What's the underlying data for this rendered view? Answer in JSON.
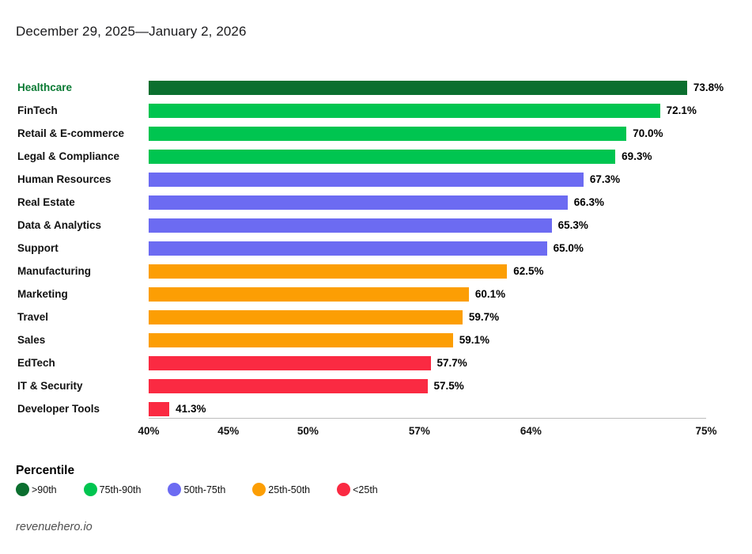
{
  "title": "December 29, 2025—January 2, 2026",
  "footer": "revenuehero.io",
  "legend": {
    "title": "Percentile",
    "items": [
      {
        "label": ">90th",
        "tier": "gt90"
      },
      {
        "label": "75th-90th",
        "tier": "p75_90"
      },
      {
        "label": "50th-75th",
        "tier": "p50_75"
      },
      {
        "label": "25th-50th",
        "tier": "p25_50"
      },
      {
        "label": "<25th",
        "tier": "lt25"
      }
    ]
  },
  "colors": {
    "gt90": "#0B6F2F",
    "p75_90": "#00C550",
    "p50_75": "#6C6BF2",
    "p25_50": "#FC9E04",
    "lt25": "#FA2A42",
    "highlight_label": "#0A7A33",
    "axis_line": "#BDBDBD",
    "text": "#121212",
    "footer_text": "#4F4F4F"
  },
  "chart_data": {
    "type": "bar",
    "orientation": "horizontal",
    "title": "December 29, 2025—January 2, 2026",
    "xlabel": "",
    "ylabel": "",
    "xlim": [
      40,
      75
    ],
    "grid": false,
    "legend_position": "bottom",
    "x_ticks": [
      {
        "value": 40,
        "label": "40%"
      },
      {
        "value": 45,
        "label": "45%"
      },
      {
        "value": 50,
        "label": "50%"
      },
      {
        "value": 57,
        "label": "57%"
      },
      {
        "value": 64,
        "label": "64%"
      },
      {
        "value": 75,
        "label": "75%"
      }
    ],
    "bars": [
      {
        "category": "Healthcare",
        "value": 73.8,
        "display": "73.8%",
        "tier": "gt90",
        "category_highlight": true
      },
      {
        "category": "FinTech",
        "value": 72.1,
        "display": "72.1%",
        "tier": "p75_90",
        "category_highlight": false
      },
      {
        "category": "Retail & E-commerce",
        "value": 70.0,
        "display": "70.0%",
        "tier": "p75_90",
        "category_highlight": false
      },
      {
        "category": "Legal & Compliance",
        "value": 69.3,
        "display": "69.3%",
        "tier": "p75_90",
        "category_highlight": false
      },
      {
        "category": "Human Resources",
        "value": 67.3,
        "display": "67.3%",
        "tier": "p50_75",
        "category_highlight": false
      },
      {
        "category": "Real Estate",
        "value": 66.3,
        "display": "66.3%",
        "tier": "p50_75",
        "category_highlight": false
      },
      {
        "category": "Data & Analytics",
        "value": 65.3,
        "display": "65.3%",
        "tier": "p50_75",
        "category_highlight": false
      },
      {
        "category": "Support",
        "value": 65.0,
        "display": "65.0%",
        "tier": "p50_75",
        "category_highlight": false
      },
      {
        "category": "Manufacturing",
        "value": 62.5,
        "display": "62.5%",
        "tier": "p25_50",
        "category_highlight": false
      },
      {
        "category": "Marketing",
        "value": 60.1,
        "display": "60.1%",
        "tier": "p25_50",
        "category_highlight": false
      },
      {
        "category": "Travel",
        "value": 59.7,
        "display": "59.7%",
        "tier": "p25_50",
        "category_highlight": false
      },
      {
        "category": "Sales",
        "value": 59.1,
        "display": "59.1%",
        "tier": "p25_50",
        "category_highlight": false
      },
      {
        "category": "EdTech",
        "value": 57.7,
        "display": "57.7%",
        "tier": "lt25",
        "category_highlight": false
      },
      {
        "category": "IT & Security",
        "value": 57.5,
        "display": "57.5%",
        "tier": "lt25",
        "category_highlight": false
      },
      {
        "category": "Developer Tools",
        "value": 41.3,
        "display": "41.3%",
        "tier": "lt25",
        "category_highlight": false
      }
    ]
  }
}
